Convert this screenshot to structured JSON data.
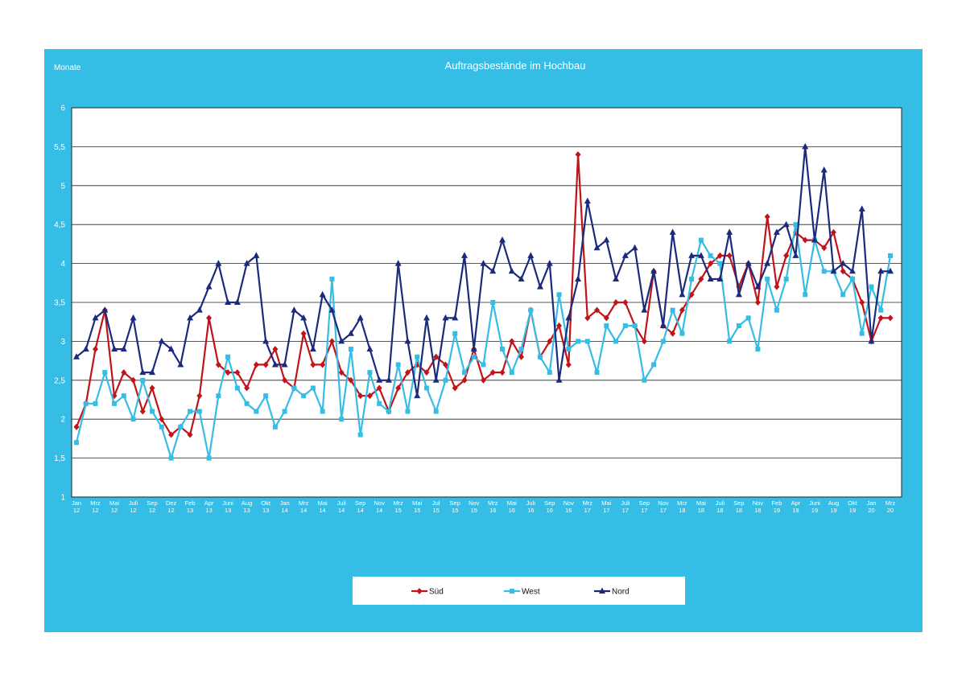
{
  "chart_data": {
    "type": "line",
    "title": "Auftragsbestände im Hochbau",
    "ylabel": "Monate",
    "ylim": [
      1,
      6
    ],
    "yticks": [
      "1",
      "1,5",
      "2",
      "2,5",
      "3",
      "3,5",
      "4",
      "4,5",
      "5",
      "5,5",
      "6"
    ],
    "grid": true,
    "legend_position": "bottom",
    "x_tick_labels": [
      [
        "Jan",
        "12"
      ],
      [
        "Mrz",
        "12"
      ],
      [
        "Mai",
        "12"
      ],
      [
        "Juli",
        "12"
      ],
      [
        "Sep",
        "12"
      ],
      [
        "Dez",
        "12"
      ],
      [
        "Feb",
        "13"
      ],
      [
        "Apr",
        "13"
      ],
      [
        "Juni",
        "13"
      ],
      [
        "Aug",
        "13"
      ],
      [
        "Okt",
        "13"
      ],
      [
        "Jan",
        "14"
      ],
      [
        "Mrz",
        "14"
      ],
      [
        "Mai",
        "14"
      ],
      [
        "Juli",
        "14"
      ],
      [
        "Sep",
        "14"
      ],
      [
        "Nov",
        "14"
      ],
      [
        "Mrz",
        "15"
      ],
      [
        "Mai",
        "15"
      ],
      [
        "Jul",
        "15"
      ],
      [
        "Sep",
        "15"
      ],
      [
        "Nov",
        "15"
      ],
      [
        "Mrz",
        "16"
      ],
      [
        "Mai",
        "16"
      ],
      [
        "Juli",
        "16"
      ],
      [
        "Sep",
        "16"
      ],
      [
        "Nov",
        "16"
      ],
      [
        "Mrz",
        "17"
      ],
      [
        "Mai",
        "17"
      ],
      [
        "Juli",
        "17"
      ],
      [
        "Sep",
        "17"
      ],
      [
        "Nov",
        "17"
      ],
      [
        "Mrz",
        "18"
      ],
      [
        "Mai",
        "18"
      ],
      [
        "Juli",
        "18"
      ],
      [
        "Sep",
        "18"
      ],
      [
        "Nov",
        "18"
      ],
      [
        "Feb",
        "19"
      ],
      [
        "Apr",
        "19"
      ],
      [
        "Juni",
        "19"
      ],
      [
        "Aug",
        "19"
      ],
      [
        "Okt",
        "19"
      ],
      [
        "Jan",
        "20"
      ],
      [
        "Mrz",
        "20"
      ]
    ],
    "series": [
      {
        "name": "Süd",
        "color": "#c0131a",
        "marker": "diamond",
        "values": [
          1.9,
          2.2,
          2.9,
          3.4,
          2.3,
          2.6,
          2.5,
          2.1,
          2.4,
          2.0,
          1.8,
          1.9,
          1.8,
          2.3,
          3.3,
          2.7,
          2.6,
          2.6,
          2.4,
          2.7,
          2.7,
          2.9,
          2.5,
          2.4,
          3.1,
          2.7,
          2.7,
          3.0,
          2.6,
          2.5,
          2.3,
          2.3,
          2.4,
          2.1,
          2.4,
          2.6,
          2.7,
          2.6,
          2.8,
          2.7,
          2.4,
          2.5,
          2.9,
          2.5,
          2.6,
          2.6,
          3.0,
          2.8,
          3.4,
          2.8,
          3.0,
          3.2,
          2.7,
          5.4,
          3.3,
          3.4,
          3.3,
          3.5,
          3.5,
          3.2,
          3.0,
          3.9,
          3.2,
          3.1,
          3.4,
          3.6,
          3.8,
          4.0,
          4.1,
          4.1,
          3.7,
          4.0,
          3.5,
          4.6,
          3.7,
          4.1,
          4.4,
          4.3,
          4.3,
          4.2,
          4.4,
          3.9,
          3.8,
          3.5,
          3.0,
          3.3,
          3.3
        ]
      },
      {
        "name": "West",
        "color": "#35bde5",
        "marker": "square",
        "values": [
          1.7,
          2.2,
          2.2,
          2.6,
          2.2,
          2.3,
          2.0,
          2.5,
          2.1,
          1.9,
          1.5,
          1.9,
          2.1,
          2.1,
          1.5,
          2.3,
          2.8,
          2.4,
          2.2,
          2.1,
          2.3,
          1.9,
          2.1,
          2.4,
          2.3,
          2.4,
          2.1,
          3.8,
          2.0,
          2.9,
          1.8,
          2.6,
          2.2,
          2.1,
          2.7,
          2.1,
          2.8,
          2.4,
          2.1,
          2.5,
          3.1,
          2.6,
          2.8,
          2.7,
          3.5,
          2.9,
          2.6,
          2.9,
          3.4,
          2.8,
          2.6,
          3.6,
          2.9,
          3.0,
          3.0,
          2.6,
          3.2,
          3.0,
          3.2,
          3.2,
          2.5,
          2.7,
          3.0,
          3.4,
          3.1,
          3.8,
          4.3,
          4.1,
          4.0,
          3.0,
          3.2,
          3.3,
          2.9,
          3.8,
          3.4,
          3.8,
          4.5,
          3.6,
          4.3,
          3.9,
          3.9,
          3.6,
          3.8,
          3.1,
          3.7,
          3.4,
          4.1
        ]
      },
      {
        "name": "Nord",
        "color": "#1b2a7c",
        "marker": "triangle",
        "values": [
          2.8,
          2.9,
          3.3,
          3.4,
          2.9,
          2.9,
          3.3,
          2.6,
          2.6,
          3.0,
          2.9,
          2.7,
          3.3,
          3.4,
          3.7,
          4.0,
          3.5,
          3.5,
          4.0,
          4.1,
          3.0,
          2.7,
          2.7,
          3.4,
          3.3,
          2.9,
          3.6,
          3.4,
          3.0,
          3.1,
          3.3,
          2.9,
          2.5,
          2.5,
          4.0,
          3.0,
          2.3,
          3.3,
          2.5,
          3.3,
          3.3,
          4.1,
          2.9,
          4.0,
          3.9,
          4.3,
          3.9,
          3.8,
          4.1,
          3.7,
          4.0,
          2.5,
          3.3,
          3.8,
          4.8,
          4.2,
          4.3,
          3.8,
          4.1,
          4.2,
          3.4,
          3.9,
          3.2,
          4.4,
          3.6,
          4.1,
          4.1,
          3.8,
          3.8,
          4.4,
          3.6,
          4.0,
          3.7,
          4.0,
          4.4,
          4.5,
          4.1,
          5.5,
          4.3,
          5.2,
          3.9,
          4.0,
          3.9,
          4.7,
          3.0,
          3.9,
          3.9
        ]
      }
    ]
  }
}
